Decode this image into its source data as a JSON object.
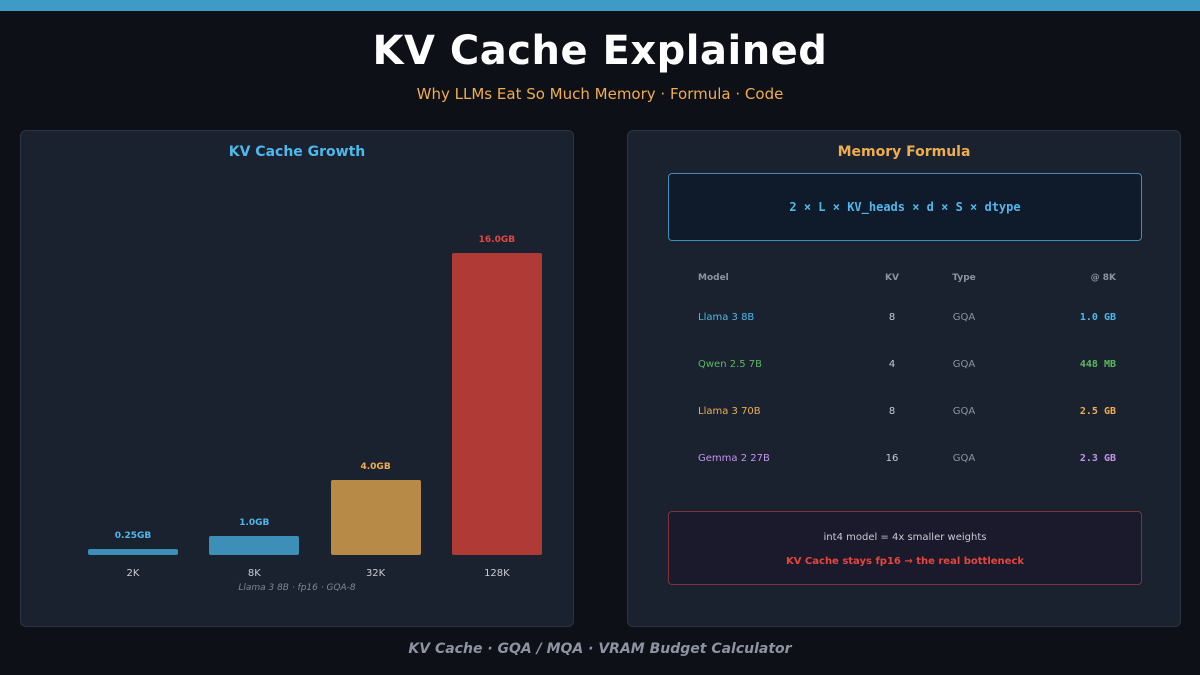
{
  "header": {
    "title": "KV Cache Explained",
    "subtitle": "Why LLMs Eat So Much Memory  ·  Formula  ·  Code"
  },
  "left_panel": {
    "title": "KV Cache Growth",
    "note": "Llama 3 8B · fp16 · GQA-8"
  },
  "chart_data": {
    "type": "bar",
    "categories": [
      "2K",
      "8K",
      "32K",
      "128K"
    ],
    "values": [
      0.25,
      1.0,
      4.0,
      16.0
    ],
    "value_labels": [
      "0.25GB",
      "1.0GB",
      "4.0GB",
      "16.0GB"
    ],
    "colors": [
      "#3d8fb8",
      "#3d8fb8",
      "#b88a48",
      "#b03a35"
    ],
    "label_colors": [
      "#4fb8ea",
      "#4fb8ea",
      "#f0ad4e",
      "#e5473c"
    ],
    "title": "KV Cache Growth",
    "xlabel": "",
    "ylabel": "",
    "ylim": [
      0,
      16.0
    ],
    "grid": false
  },
  "right_panel": {
    "title": "Memory Formula",
    "formula": "2 × L × KV_heads × d × S × dtype",
    "table": {
      "headers": [
        "Model",
        "KV",
        "Type",
        "@ 8K"
      ],
      "rows": [
        {
          "model": "Llama 3 8B",
          "kv": "8",
          "type": "GQA",
          "mem": "1.0 GB",
          "color": "#4fb8ea"
        },
        {
          "model": "Qwen 2.5 7B",
          "kv": "4",
          "type": "GQA",
          "mem": "448 MB",
          "color": "#5cb85c"
        },
        {
          "model": "Llama 3 70B",
          "kv": "8",
          "type": "GQA",
          "mem": "2.5 GB",
          "color": "#f0ad4e"
        },
        {
          "model": "Gemma 2 27B",
          "kv": "16",
          "type": "GQA",
          "mem": "2.3 GB",
          "color": "#c792ea"
        }
      ]
    },
    "note_line1": "int4 model = 4x smaller weights",
    "note_line2": "KV Cache stays fp16 → the real bottleneck"
  },
  "footer": {
    "text": "KV Cache  ·  GQA / MQA  ·  VRAM Budget Calculator"
  }
}
